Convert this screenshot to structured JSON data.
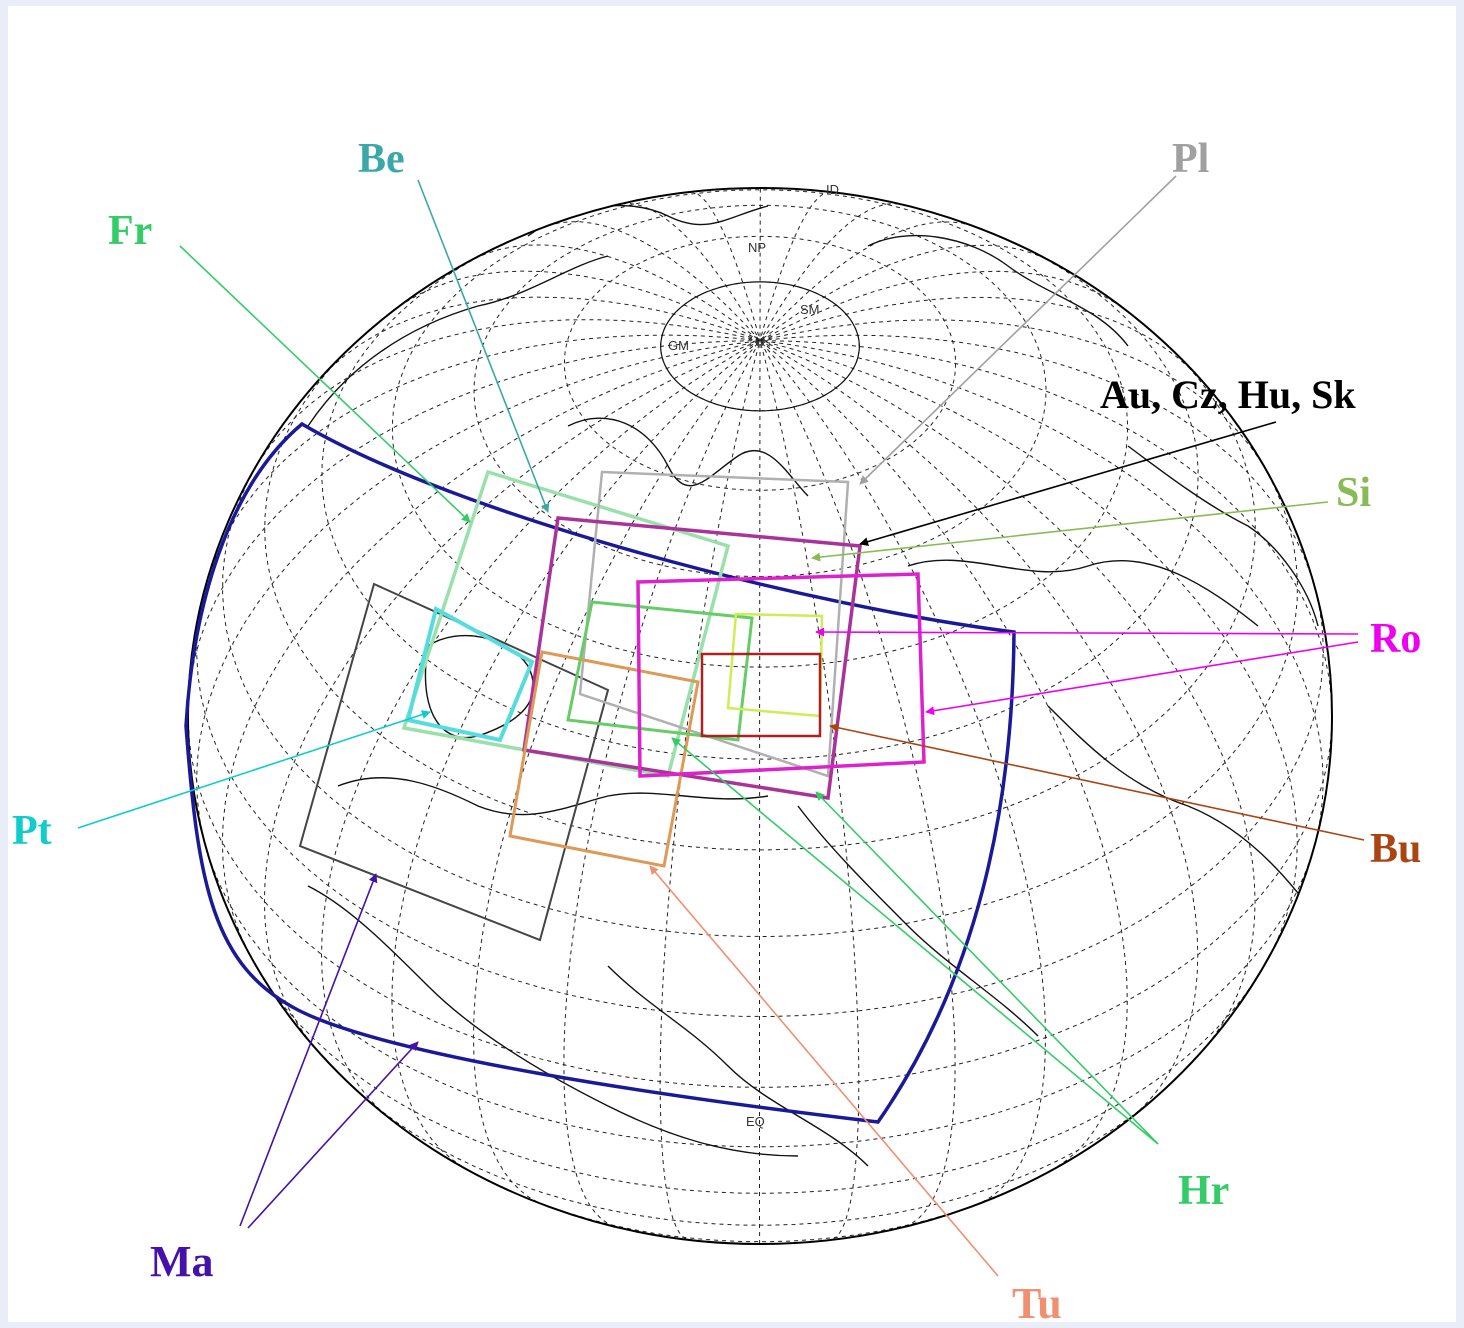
{
  "globe_labels": {
    "np": "NP",
    "gm": "GM",
    "id": "ID",
    "sm": "SM",
    "eq": "EQ"
  },
  "labels": {
    "fr": {
      "text": "Fr",
      "color": "#33cc66"
    },
    "be": {
      "text": "Be",
      "color": "#3aa8a8"
    },
    "pl": {
      "text": "Pl",
      "color": "#a0a0a0"
    },
    "aucz": {
      "text": "Au, Cz, Hu, Sk",
      "color": "#000000"
    },
    "si": {
      "text": "Si",
      "color": "#88bb55"
    },
    "ro": {
      "text": "Ro",
      "color": "#ee00ee"
    },
    "pt": {
      "text": "Pt",
      "color": "#11cccc"
    },
    "bu": {
      "text": "Bu",
      "color": "#aa4411"
    },
    "hr": {
      "text": "Hr",
      "color": "#33cc66"
    },
    "ma": {
      "text": "Ma",
      "color": "#4411aa"
    },
    "tu": {
      "text": "Tu",
      "color": "#f09070"
    }
  },
  "domain_colors": {
    "ma": "#1a1a99",
    "pt": "#55dddd",
    "fr": "#99e0aa",
    "pl": "#b0b0b0",
    "aucz": "#aa3399",
    "ro": "#dd22cc",
    "si": "#ccee55",
    "bu": "#aa2222",
    "tu": "#dd9955",
    "hr": "#66cc66",
    "other": "#444444"
  }
}
